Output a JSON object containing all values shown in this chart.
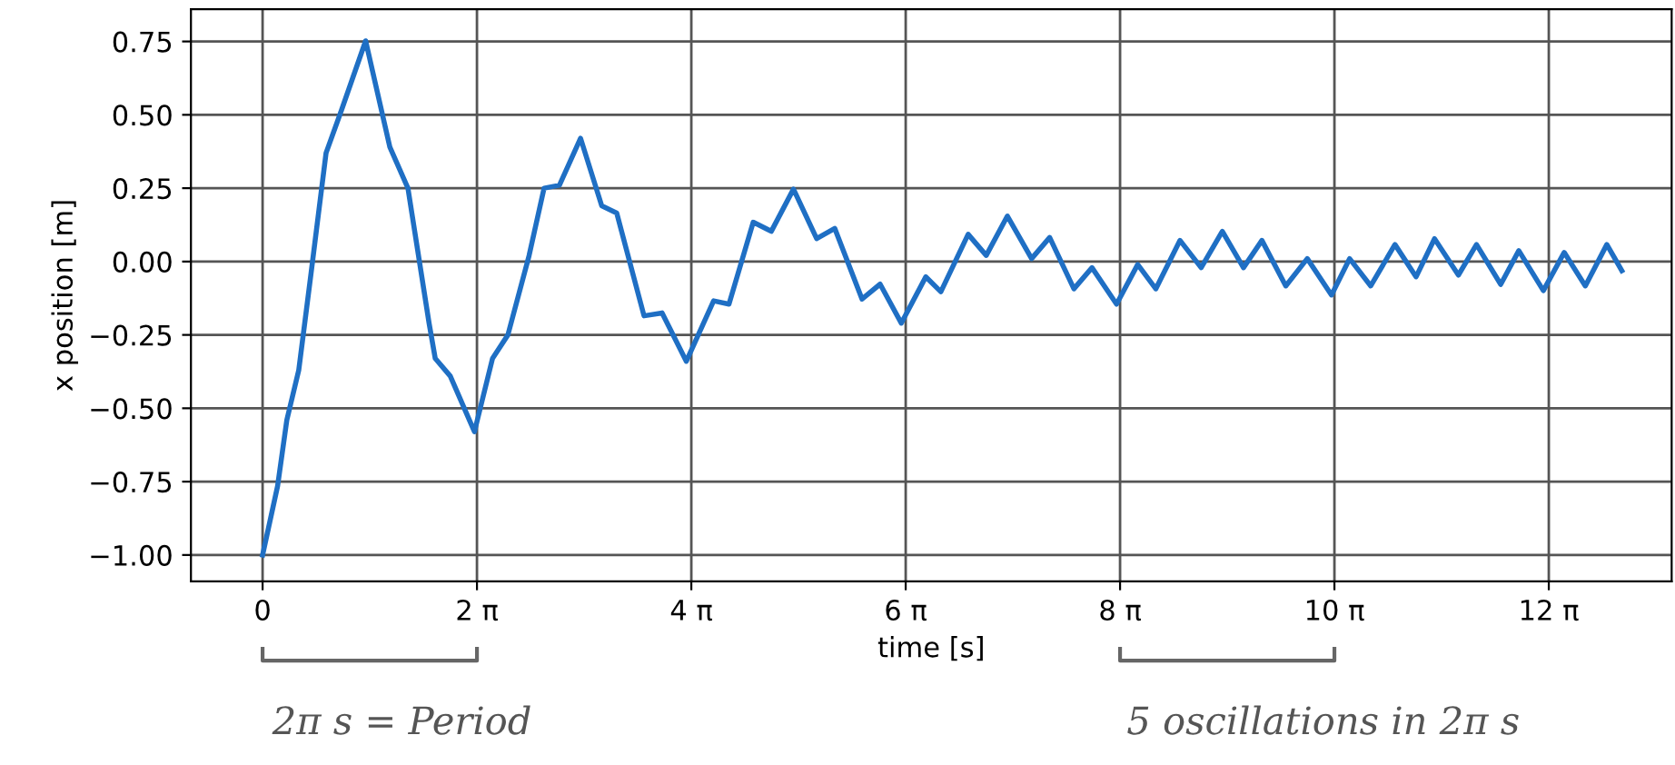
{
  "chart_data": {
    "type": "line",
    "xlabel": "time [s]",
    "ylabel": "x position [m]",
    "x": [
      0,
      0.44,
      0.71,
      1.06,
      1.42,
      1.86,
      2.31,
      3.02,
      3.73,
      4.26,
      4.88,
      5.06,
      5.5,
      6.21,
      6.74,
      7.19,
      7.81,
      8.25,
      8.7,
      9.32,
      9.94,
      10.38,
      11.18,
      11.71,
      12.42,
      13.22,
      13.67,
      14.38,
      14.91,
      15.56,
      16.24,
      16.77,
      17.57,
      18.1,
      18.72,
      19.44,
      19.88,
      20.68,
      21.21,
      21.83,
      22.54,
      23.07,
      23.78,
      24.31,
      25.03,
      25.65,
      26.18,
      26.89,
      27.51,
      28.13,
      28.75,
      29.29,
      29.99,
      30.62,
      31.33,
      31.86,
      32.48,
      33.19,
      33.81,
      34.35,
      35.05,
      35.58,
      36.29,
      36.82,
      37.54,
      38.15,
      38.77,
      39.4,
      39.84
    ],
    "series": [
      {
        "color": "#1f6fc4",
        "values": [
          -1.0,
          -0.765,
          -0.54,
          -0.37,
          -0.04,
          0.37,
          0.515,
          0.752,
          0.39,
          0.25,
          -0.21,
          -0.33,
          -0.39,
          -0.58,
          -0.33,
          -0.25,
          0.02,
          0.25,
          0.26,
          0.42,
          0.19,
          0.165,
          -0.185,
          -0.175,
          -0.34,
          -0.134,
          -0.145,
          0.134,
          0.103,
          0.247,
          0.078,
          0.113,
          -0.128,
          -0.077,
          -0.21,
          -0.052,
          -0.103,
          0.093,
          0.021,
          0.155,
          0.01,
          0.082,
          -0.093,
          -0.021,
          -0.145,
          -0.01,
          -0.093,
          0.072,
          -0.021,
          0.103,
          -0.021,
          0.072,
          -0.083,
          0.01,
          -0.114,
          0.01,
          -0.083,
          0.058,
          -0.052,
          0.078,
          -0.046,
          0.058,
          -0.078,
          0.037,
          -0.099,
          0.031,
          -0.083,
          0.058,
          -0.031
        ]
      }
    ],
    "xlim": [
      -2.1,
      41.3
    ],
    "ylim": [
      -1.09,
      0.86
    ],
    "xticks": [
      0,
      {
        "value": 6.2832,
        "label": "2 π"
      },
      {
        "value": 12.5664,
        "label": "4 π"
      },
      {
        "value": 18.8496,
        "label": "6 π"
      },
      {
        "value": 25.1327,
        "label": "8 π"
      },
      {
        "value": 31.4159,
        "label": "10 π"
      },
      {
        "value": 37.6991,
        "label": "12 π"
      }
    ],
    "yticks": [
      {
        "value": -1.0,
        "label": "−1.00"
      },
      {
        "value": -0.75,
        "label": "−0.75"
      },
      {
        "value": -0.5,
        "label": "−0.50"
      },
      {
        "value": -0.25,
        "label": "−0.25"
      },
      {
        "value": 0.0,
        "label": "0.00"
      },
      {
        "value": 0.25,
        "label": "0.25"
      },
      {
        "value": 0.5,
        "label": "0.50"
      },
      {
        "value": 0.75,
        "label": "0.75"
      }
    ],
    "grid": true,
    "marker": "none",
    "line_style": "solid",
    "annotations": [
      "2π s = Period",
      "5 oscillations in 2π s"
    ]
  }
}
